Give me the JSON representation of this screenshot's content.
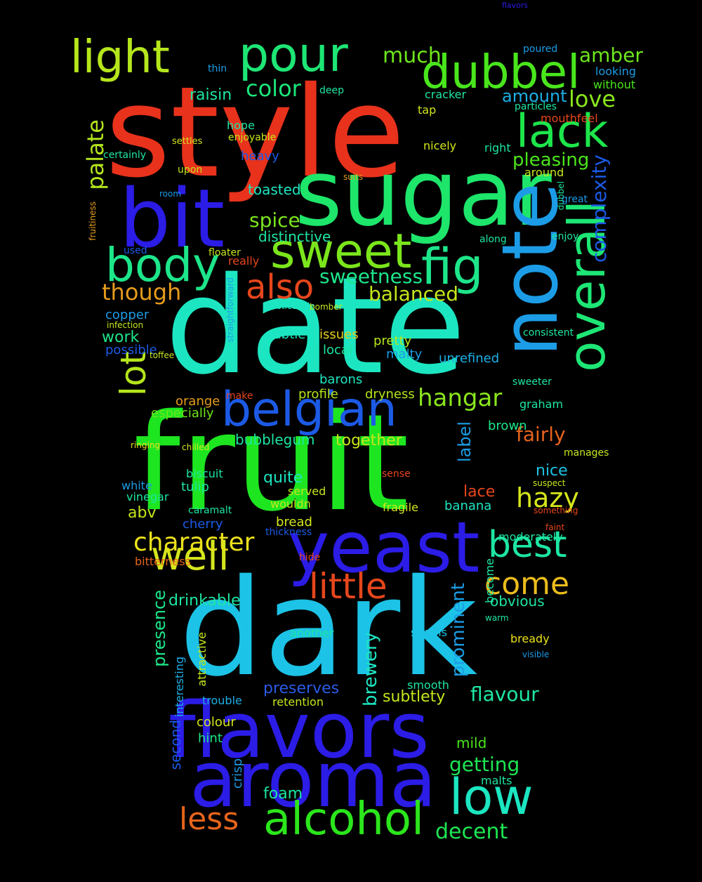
{
  "words": [
    {
      "text": "style",
      "color": "#e8321c",
      "weight": "major"
    },
    {
      "text": "date",
      "color": "#1ce6c1",
      "weight": "major"
    },
    {
      "text": "fruit",
      "color": "#1de621",
      "weight": "major"
    },
    {
      "text": "dark",
      "color": "#1cc3e6",
      "weight": "major"
    },
    {
      "text": "sugar",
      "color": "#1de66b",
      "weight": "major"
    },
    {
      "text": "flavors",
      "color": "#2b1ce6",
      "weight": "major"
    },
    {
      "text": "aroma",
      "color": "#2b1ce6",
      "weight": "major"
    },
    {
      "text": "bit",
      "color": "#2b1ce6",
      "weight": "major"
    },
    {
      "text": "note",
      "color": "#1c9ce6",
      "weight": "major"
    },
    {
      "text": "yeast",
      "color": "#2b1ce6",
      "weight": "major"
    },
    {
      "text": "overall",
      "color": "#1de675",
      "weight": "major"
    },
    {
      "text": "dubbel",
      "color": "#49e61c",
      "weight": "major"
    },
    {
      "text": "pour",
      "color": "#1de675",
      "weight": "major"
    },
    {
      "text": "light",
      "color": "#b5e61c",
      "weight": "major"
    },
    {
      "text": "body",
      "color": "#1de68a",
      "weight": "major"
    },
    {
      "text": "sweet",
      "color": "#7be61c",
      "weight": "major"
    },
    {
      "text": "fig",
      "color": "#1de68a",
      "weight": "major"
    },
    {
      "text": "lack",
      "color": "#1de64b",
      "weight": "major"
    },
    {
      "text": "belgian",
      "color": "#1c5ae6",
      "weight": "major"
    },
    {
      "text": "alcohol",
      "color": "#2be61c",
      "weight": "major"
    },
    {
      "text": "low",
      "color": "#1ce6c1",
      "weight": "major"
    },
    {
      "text": "well",
      "color": "#d4e61c",
      "weight": "major"
    },
    {
      "text": "little",
      "color": "#e6461c",
      "weight": "major"
    },
    {
      "text": "best",
      "color": "#1de6a3",
      "weight": "major"
    },
    {
      "text": "lot",
      "color": "#b5e61c",
      "weight": "major"
    },
    {
      "text": "also",
      "color": "#e6461c",
      "weight": "major"
    },
    {
      "text": "character",
      "color": "#ebe11c",
      "weight": "medium"
    },
    {
      "text": "come",
      "color": "#ebbc1c",
      "weight": "medium"
    },
    {
      "text": "less",
      "color": "#e6641c",
      "weight": "medium"
    },
    {
      "text": "hangar",
      "color": "#8ae61c",
      "weight": "medium"
    },
    {
      "text": "hazy",
      "color": "#d4e61c",
      "weight": "medium"
    },
    {
      "text": "palate",
      "color": "#b5e61c",
      "weight": "medium"
    },
    {
      "text": "complexity",
      "color": "#1c5ae6",
      "weight": "medium"
    },
    {
      "text": "amber",
      "color": "#6ee61c",
      "weight": "medium"
    },
    {
      "text": "love",
      "color": "#8ae61c",
      "weight": "medium"
    },
    {
      "text": "though",
      "color": "#e69c1c",
      "weight": "medium"
    },
    {
      "text": "color",
      "color": "#1ce67a",
      "weight": "medium"
    },
    {
      "text": "much",
      "color": "#6ee61c",
      "weight": "medium"
    },
    {
      "text": "getting",
      "color": "#1de653",
      "weight": "medium"
    },
    {
      "text": "decent",
      "color": "#1de653",
      "weight": "medium"
    },
    {
      "text": "flavour",
      "color": "#1de6a3",
      "weight": "medium"
    },
    {
      "text": "fairly",
      "color": "#e6641c",
      "weight": "medium"
    },
    {
      "text": "balanced",
      "color": "#c4e61c",
      "weight": "medium"
    },
    {
      "text": "sweetness",
      "color": "#1de68a",
      "weight": "medium"
    },
    {
      "text": "spice",
      "color": "#7be61c",
      "weight": "medium"
    },
    {
      "text": "presence",
      "color": "#1de68a",
      "weight": "medium"
    },
    {
      "text": "prominent",
      "color": "#1c9ce6",
      "weight": "medium"
    },
    {
      "text": "brewery",
      "color": "#1ce6c1",
      "weight": "medium"
    },
    {
      "text": "pleasing",
      "color": "#4be61c",
      "weight": "medium"
    },
    {
      "text": "preserves",
      "color": "#2b5ae6",
      "weight": "medium"
    },
    {
      "text": "drinkable",
      "color": "#1de6a3",
      "weight": "medium"
    },
    {
      "text": "together",
      "color": "#c4e61c",
      "weight": "medium"
    },
    {
      "text": "label",
      "color": "#1c9ce6",
      "weight": "medium"
    },
    {
      "text": "amount",
      "color": "#1cafe6",
      "weight": "medium"
    },
    {
      "text": "raisin",
      "color": "#1ce6a3",
      "weight": "medium"
    },
    {
      "text": "work",
      "color": "#1de68a",
      "weight": "medium"
    },
    {
      "text": "abv",
      "color": "#c4e61c",
      "weight": "medium"
    },
    {
      "text": "quite",
      "color": "#1ce6c1",
      "weight": "medium"
    },
    {
      "text": "lace",
      "color": "#e6461c",
      "weight": "medium"
    },
    {
      "text": "nice",
      "color": "#1cc3e6",
      "weight": "medium"
    },
    {
      "text": "subtlety",
      "color": "#c4e61c",
      "weight": "medium"
    },
    {
      "text": "obvious",
      "color": "#1de6a3",
      "weight": "medium"
    },
    {
      "text": "crisp",
      "color": "#1c9ce6",
      "weight": "medium"
    },
    {
      "text": "foam",
      "color": "#1de6a3",
      "weight": "medium"
    },
    {
      "text": "mild",
      "color": "#49e61c",
      "weight": "medium"
    },
    {
      "text": "second",
      "color": "#1c5ae6",
      "weight": "medium"
    },
    {
      "text": "bubblegum",
      "color": "#1de6a3",
      "weight": "medium"
    },
    {
      "text": "distinctive",
      "color": "#1de6a3",
      "weight": "medium"
    },
    {
      "text": "toasted",
      "color": "#1ce6c1",
      "weight": "medium"
    },
    {
      "text": "orange",
      "color": "#e69c1c",
      "weight": "small"
    },
    {
      "text": "especially",
      "color": "#6ee61c",
      "weight": "small"
    },
    {
      "text": "profile",
      "color": "#b5e61c",
      "weight": "small"
    },
    {
      "text": "dryness",
      "color": "#b5e61c",
      "weight": "small"
    },
    {
      "text": "unrefined",
      "color": "#1cafe6",
      "weight": "small"
    },
    {
      "text": "moderately",
      "color": "#1de6a3",
      "weight": "small"
    },
    {
      "text": "pretty",
      "color": "#b5e61c",
      "weight": "small"
    },
    {
      "text": "malty",
      "color": "#1c9ce6",
      "weight": "small"
    },
    {
      "text": "subtle",
      "color": "#1ce6c1",
      "weight": "small"
    },
    {
      "text": "issues",
      "color": "#e6ce1c",
      "weight": "small"
    },
    {
      "text": "local",
      "color": "#1de6a3",
      "weight": "small"
    },
    {
      "text": "barons",
      "color": "#1ce6c1",
      "weight": "small"
    },
    {
      "text": "possible",
      "color": "#1c5ae6",
      "weight": "small"
    },
    {
      "text": "copper",
      "color": "#1c9ce6",
      "weight": "small"
    },
    {
      "text": "bread",
      "color": "#d4e61c",
      "weight": "small"
    },
    {
      "text": "cherry",
      "color": "#1c5ae6",
      "weight": "small"
    },
    {
      "text": "tulip",
      "color": "#1de6a3",
      "weight": "small"
    },
    {
      "text": "vinegar",
      "color": "#1de6a3",
      "weight": "small"
    },
    {
      "text": "white",
      "color": "#1c9ce6",
      "weight": "small"
    },
    {
      "text": "biscuit",
      "color": "#1de6a3",
      "weight": "small"
    },
    {
      "text": "caramalt",
      "color": "#1de6a3",
      "weight": "small"
    },
    {
      "text": "wouldn",
      "color": "#c4e61c",
      "weight": "small"
    },
    {
      "text": "served",
      "color": "#c4e61c",
      "weight": "small"
    },
    {
      "text": "fragile",
      "color": "#d4e61c",
      "weight": "small"
    },
    {
      "text": "banana",
      "color": "#1ce6c1",
      "weight": "small"
    },
    {
      "text": "become",
      "color": "#1de6a3",
      "weight": "small"
    },
    {
      "text": "brown",
      "color": "#1de68a",
      "weight": "small"
    },
    {
      "text": "graham",
      "color": "#1de6a3",
      "weight": "small"
    },
    {
      "text": "sweeter",
      "color": "#1de6a3",
      "weight": "small"
    },
    {
      "text": "bready",
      "color": "#ebe11c",
      "weight": "small"
    },
    {
      "text": "smooth",
      "color": "#1de6a3",
      "weight": "small"
    },
    {
      "text": "another",
      "color": "#1de6a3",
      "weight": "small"
    },
    {
      "text": "seems",
      "color": "#1cc3e6",
      "weight": "small"
    },
    {
      "text": "retention",
      "color": "#c4e61c",
      "weight": "small"
    },
    {
      "text": "trouble",
      "color": "#1cafe6",
      "weight": "small"
    },
    {
      "text": "colour",
      "color": "#d4e61c",
      "weight": "small"
    },
    {
      "text": "hint",
      "color": "#1de68a",
      "weight": "small"
    },
    {
      "text": "malts",
      "color": "#1de6a3",
      "weight": "small"
    },
    {
      "text": "interesting",
      "color": "#1cafe6",
      "weight": "small"
    },
    {
      "text": "attractive",
      "color": "#c4e61c",
      "weight": "small"
    },
    {
      "text": "heavy",
      "color": "#1c5ae6",
      "weight": "small"
    },
    {
      "text": "enjoyable",
      "color": "#c4e61c",
      "weight": "small"
    },
    {
      "text": "hope",
      "color": "#1de6a3",
      "weight": "small"
    },
    {
      "text": "certainly",
      "color": "#1de6a3",
      "weight": "small"
    },
    {
      "text": "settles",
      "color": "#d4e61c",
      "weight": "small"
    },
    {
      "text": "upon",
      "color": "#c4e61c",
      "weight": "small"
    },
    {
      "text": "mouthfeel",
      "color": "#e6461c",
      "weight": "small"
    },
    {
      "text": "particles",
      "color": "#1de6a3",
      "weight": "small"
    },
    {
      "text": "cracker",
      "color": "#1de6a3",
      "weight": "small"
    },
    {
      "text": "nicely",
      "color": "#d4e61c",
      "weight": "small"
    },
    {
      "text": "right",
      "color": "#1de6a3",
      "weight": "small"
    },
    {
      "text": "around",
      "color": "#c4e61c",
      "weight": "small"
    },
    {
      "text": "thin",
      "color": "#1c9ce6",
      "weight": "small"
    },
    {
      "text": "deep",
      "color": "#1de6a3",
      "weight": "small"
    },
    {
      "text": "tap",
      "color": "#d4e61c",
      "weight": "small"
    },
    {
      "text": "really",
      "color": "#e6461c",
      "weight": "small"
    },
    {
      "text": "used",
      "color": "#1c5ae6",
      "weight": "small"
    },
    {
      "text": "floater",
      "color": "#c4e61c",
      "weight": "small"
    },
    {
      "text": "enjoy",
      "color": "#1de6a3",
      "weight": "small"
    },
    {
      "text": "along",
      "color": "#1de6a3",
      "weight": "small"
    },
    {
      "text": "consistent",
      "color": "#1de6a3",
      "weight": "small"
    },
    {
      "text": "dubbel",
      "color": "#1de6a3",
      "weight": "tiny"
    },
    {
      "text": "great",
      "color": "#1c9ce6",
      "weight": "small"
    },
    {
      "text": "looking",
      "color": "#1c9ce6",
      "weight": "small"
    },
    {
      "text": "without",
      "color": "#49e61c",
      "weight": "small"
    },
    {
      "text": "poured",
      "color": "#1c9ce6",
      "weight": "small"
    },
    {
      "text": "make",
      "color": "#e6461c",
      "weight": "small"
    },
    {
      "text": "infection",
      "color": "#c4e61c",
      "weight": "tiny"
    },
    {
      "text": "ringing",
      "color": "#ebe11c",
      "weight": "tiny"
    },
    {
      "text": "hide",
      "color": "#e6461c",
      "weight": "small"
    },
    {
      "text": "bitterness",
      "color": "#e6641c",
      "weight": "small"
    },
    {
      "text": "toffee",
      "color": "#c4e61c",
      "weight": "tiny"
    },
    {
      "text": "room",
      "color": "#1c9ce6",
      "weight": "tiny"
    },
    {
      "text": "fruitiness",
      "color": "#e69c1c",
      "weight": "tiny"
    },
    {
      "text": "straightforward",
      "color": "#1c9ce6",
      "weight": "tiny"
    },
    {
      "text": "noticeable",
      "color": "#1ce6c1",
      "weight": "tiny"
    },
    {
      "text": "bomber",
      "color": "#c4e61c",
      "weight": "tiny"
    },
    {
      "text": "chilled",
      "color": "#d4e61c",
      "weight": "tiny"
    },
    {
      "text": "thickness",
      "color": "#1c5ae6",
      "weight": "tiny"
    },
    {
      "text": "sense",
      "color": "#e6461c",
      "weight": "tiny"
    },
    {
      "text": "suits",
      "color": "#e69c1c",
      "weight": "tiny"
    },
    {
      "text": "manages",
      "color": "#c4e61c",
      "weight": "tiny"
    },
    {
      "text": "flavors",
      "color": "#2b1ce6",
      "weight": "tiny"
    },
    {
      "text": "warm",
      "color": "#1de6a3",
      "weight": "tiny"
    },
    {
      "text": "visible",
      "color": "#1c9ce6",
      "weight": "tiny"
    },
    {
      "text": "faint",
      "color": "#e6461c",
      "weight": "tiny"
    },
    {
      "text": "suspect",
      "color": "#c4e61c",
      "weight": "tiny"
    },
    {
      "text": "something",
      "color": "#e6461c",
      "weight": "tiny"
    }
  ]
}
